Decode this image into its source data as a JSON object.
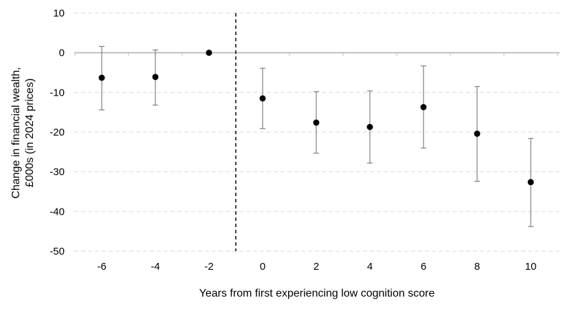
{
  "chart_data": {
    "type": "scatter",
    "xlabel": "Years from first experiencing low cognition score",
    "ylabel": [
      "Change in financial wealth,",
      "£000s (in 2024 prices)"
    ],
    "x_ticks": [
      "-6",
      "-4",
      "-2",
      "0",
      "2",
      "4",
      "6",
      "8",
      "10"
    ],
    "y_ticks": [
      "10",
      "0",
      "-10",
      "-20",
      "-30",
      "-40",
      "-50"
    ],
    "ylim": [
      -50,
      10
    ],
    "grid": "horizontal dashed",
    "reference_line_x": -1,
    "points": [
      {
        "x": -6,
        "y": -6.3,
        "lower": -14.4,
        "upper": 1.6
      },
      {
        "x": -4,
        "y": -6.1,
        "lower": -13.2,
        "upper": 0.7
      },
      {
        "x": -2,
        "y": 0.0,
        "lower": 0.0,
        "upper": 0.0
      },
      {
        "x": 0,
        "y": -11.5,
        "lower": -19.1,
        "upper": -3.9
      },
      {
        "x": 2,
        "y": -17.6,
        "lower": -25.3,
        "upper": -9.8
      },
      {
        "x": 4,
        "y": -18.7,
        "lower": -27.8,
        "upper": -9.6
      },
      {
        "x": 6,
        "y": -13.7,
        "lower": -24.0,
        "upper": -3.3
      },
      {
        "x": 8,
        "y": -20.4,
        "lower": -32.4,
        "upper": -8.5
      },
      {
        "x": 10,
        "y": -32.6,
        "lower": -43.8,
        "upper": -21.6
      }
    ],
    "colors": {
      "point": "#000000",
      "errorbar": "#7f7f7f",
      "zero_line": "#bfbfbf",
      "grid": "#d9d9d9",
      "reference_line": "#000000"
    }
  }
}
